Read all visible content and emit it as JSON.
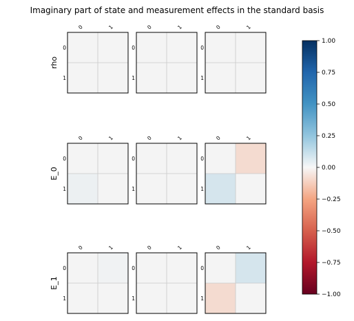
{
  "chart_data": {
    "type": "heatmap",
    "title": "Imaginary part of state and measurement effects in the standard basis",
    "row_labels": [
      "rho",
      "E_0",
      "E_1"
    ],
    "tick_labels": [
      "0",
      "1"
    ],
    "grid": true,
    "colormap": "RdBu",
    "clim": [
      -1.0,
      1.0
    ],
    "colorbar_ticks": [
      "1.00",
      "0.75",
      "0.50",
      "0.25",
      "0.00",
      "−0.25",
      "−0.50",
      "−0.75",
      "−1.00"
    ],
    "colorbar_tick_values": [
      1.0,
      0.75,
      0.5,
      0.25,
      0.0,
      -0.25,
      -0.5,
      -0.75,
      -1.0
    ],
    "panels": [
      [
        [
          [
            0,
            0
          ],
          [
            0,
            0
          ]
        ],
        [
          [
            0,
            0
          ],
          [
            0,
            0
          ]
        ],
        [
          [
            0,
            0
          ],
          [
            0,
            0
          ]
        ]
      ],
      [
        [
          [
            0,
            0
          ],
          [
            0.02,
            0
          ]
        ],
        [
          [
            0,
            0
          ],
          [
            0,
            0
          ]
        ],
        [
          [
            0,
            -0.08
          ],
          [
            0.08,
            0
          ]
        ]
      ],
      [
        [
          [
            0,
            0.01
          ],
          [
            0,
            0
          ]
        ],
        [
          [
            0,
            0
          ],
          [
            0,
            0
          ]
        ],
        [
          [
            0,
            0.08
          ],
          [
            -0.08,
            0
          ]
        ]
      ]
    ]
  }
}
